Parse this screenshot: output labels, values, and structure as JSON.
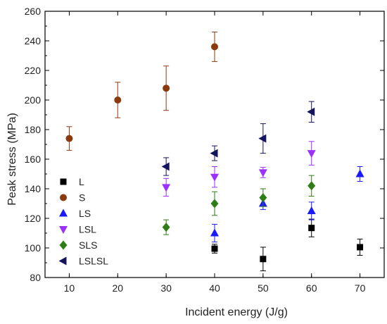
{
  "chart_data": {
    "type": "scatter",
    "xlabel": "Incident energy (J/g)",
    "ylabel": "Peak stress (MPa)",
    "xlim": [
      5,
      75
    ],
    "ylim": [
      80,
      260
    ],
    "xticks": [
      10,
      20,
      30,
      40,
      50,
      60,
      70
    ],
    "yticks": [
      80,
      100,
      120,
      140,
      160,
      180,
      200,
      220,
      240,
      260
    ],
    "grid": false,
    "legend_position": "left",
    "error_bars": true,
    "series": [
      {
        "name": "L",
        "marker": "square",
        "color": "#000000",
        "points": [
          {
            "x": 40,
            "y": 99.5,
            "err": 3
          },
          {
            "x": 50,
            "y": 92.5,
            "err": 8
          },
          {
            "x": 60,
            "y": 113.5,
            "err": 6
          },
          {
            "x": 70,
            "y": 100.5,
            "err": 5.5
          }
        ]
      },
      {
        "name": "S",
        "marker": "circle",
        "color": "#8b3a0e",
        "points": [
          {
            "x": 10,
            "y": 174,
            "err": 8
          },
          {
            "x": 20,
            "y": 200,
            "err": 12
          },
          {
            "x": 30,
            "y": 208,
            "err": 15
          },
          {
            "x": 40,
            "y": 236,
            "err": 10
          }
        ]
      },
      {
        "name": "LS",
        "marker": "triangle-up",
        "color": "#1a1aff",
        "points": [
          {
            "x": 40,
            "y": 110,
            "err": 6
          },
          {
            "x": 50,
            "y": 130,
            "err": 4
          },
          {
            "x": 60,
            "y": 125,
            "err": 6
          },
          {
            "x": 70,
            "y": 150,
            "err": 5
          }
        ]
      },
      {
        "name": "LSL",
        "marker": "triangle-down",
        "color": "#9b30ff",
        "points": [
          {
            "x": 30,
            "y": 141,
            "err": 6
          },
          {
            "x": 40,
            "y": 148,
            "err": 7
          },
          {
            "x": 50,
            "y": 151,
            "err": 3.5
          },
          {
            "x": 60,
            "y": 164,
            "err": 8
          }
        ]
      },
      {
        "name": "SLS",
        "marker": "diamond",
        "color": "#2e7d16",
        "points": [
          {
            "x": 30,
            "y": 114,
            "err": 5
          },
          {
            "x": 40,
            "y": 130,
            "err": 8
          },
          {
            "x": 50,
            "y": 134,
            "err": 6
          },
          {
            "x": 60,
            "y": 142,
            "err": 7
          }
        ]
      },
      {
        "name": "LSLSL",
        "marker": "triangle-left",
        "color": "#14145e",
        "points": [
          {
            "x": 30,
            "y": 155,
            "err": 6
          },
          {
            "x": 40,
            "y": 164,
            "err": 5
          },
          {
            "x": 50,
            "y": 174,
            "err": 10
          },
          {
            "x": 60,
            "y": 192,
            "err": 7
          }
        ]
      }
    ]
  }
}
